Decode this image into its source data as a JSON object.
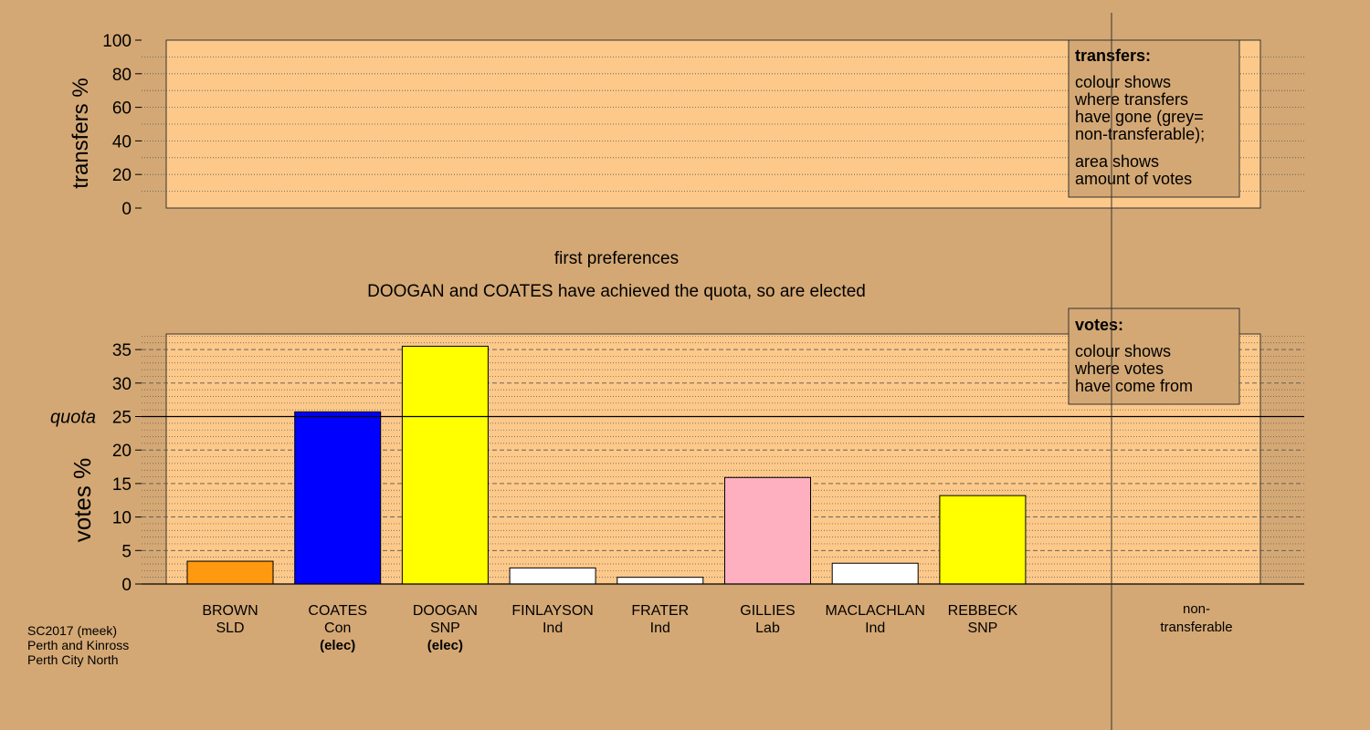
{
  "chart_data": [
    {
      "type": "bar",
      "panel": "transfers",
      "ylabel": "transfers %",
      "ylim": [
        0,
        100
      ],
      "yticks": [
        "0",
        "20",
        "40",
        "60",
        "80",
        "100"
      ],
      "grid": "dotted horizontal",
      "legend": {
        "title": "transfers:",
        "lines1": [
          "colour shows",
          "where transfers",
          "have gone (grey=",
          "non-transferable);"
        ],
        "lines2": [
          "area shows",
          "amount of votes"
        ]
      },
      "values": []
    },
    {
      "type": "bar",
      "panel": "votes",
      "ylabel": "votes %",
      "ylim": [
        0,
        37.5
      ],
      "yticks": [
        "0",
        "5",
        "10",
        "15",
        "20",
        "25",
        "30",
        "35"
      ],
      "quota": {
        "label": "quota",
        "value": 25
      },
      "grid": "dashed and dotted horizontal",
      "legend": {
        "title": "votes:",
        "lines": [
          "colour shows",
          "where votes",
          "have come from"
        ]
      },
      "categories": [
        {
          "name": "BROWN",
          "party": "SLD",
          "elected": "",
          "value": 3.4,
          "color": "#ff9910"
        },
        {
          "name": "COATES",
          "party": "Con",
          "elected": "(elec)",
          "value": 25.7,
          "color": "#0000ff"
        },
        {
          "name": "DOOGAN",
          "party": "SNP",
          "elected": "(elec)",
          "value": 35.5,
          "color": "#ffff00"
        },
        {
          "name": "FINLAYSON",
          "party": "Ind",
          "elected": "",
          "value": 2.4,
          "color": "#ffffff"
        },
        {
          "name": "FRATER",
          "party": "Ind",
          "elected": "",
          "value": 1.0,
          "color": "#ffffff"
        },
        {
          "name": "GILLIES",
          "party": "Lab",
          "elected": "",
          "value": 15.9,
          "color": "#ffb0c0"
        },
        {
          "name": "MACLACHLAN",
          "party": "Ind",
          "elected": "",
          "value": 3.1,
          "color": "#ffffff"
        },
        {
          "name": "REBBECK",
          "party": "SNP",
          "elected": "",
          "value": 13.2,
          "color": "#ffff00"
        }
      ],
      "non_transferable": {
        "label1": "non-",
        "label2": "transferable",
        "value": 0
      }
    }
  ],
  "headings": {
    "stage": "first preferences",
    "status": "DOOGAN and COATES have achieved the quota, so are elected"
  },
  "footer": [
    "SC2017 (meek)",
    "Perth and Kinross",
    "Perth City North"
  ],
  "colors": {
    "background": "#d4a874",
    "plot_area": "#fdc98a"
  }
}
